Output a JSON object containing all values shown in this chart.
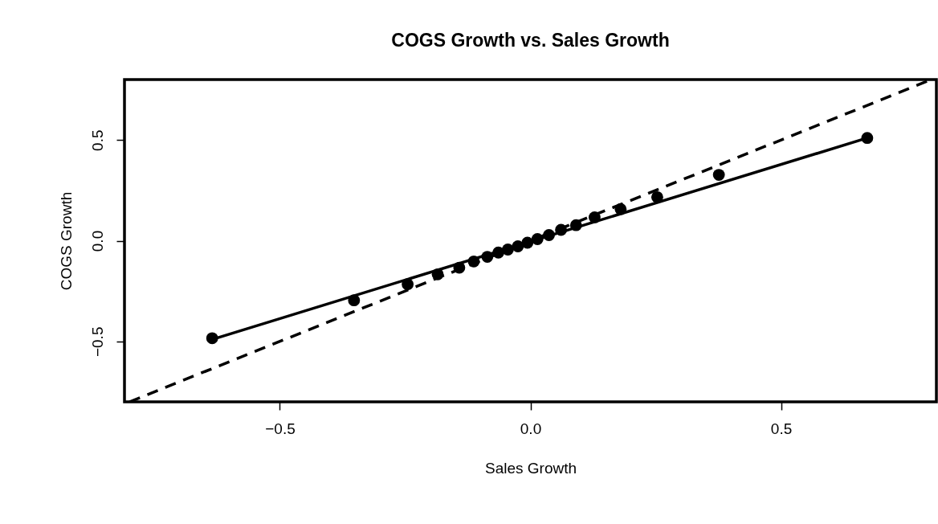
{
  "chart_data": {
    "type": "scatter",
    "title": "COGS Growth vs. Sales Growth",
    "xlabel": "Sales Growth",
    "ylabel": "COGS Growth",
    "grid": false,
    "xlim": [
      -0.81,
      0.81
    ],
    "ylim": [
      -0.8,
      0.8
    ],
    "xticks": [
      {
        "value": -0.5,
        "label": "−0.5"
      },
      {
        "value": 0,
        "label": "0.0"
      },
      {
        "value": 0.5,
        "label": "0.5"
      }
    ],
    "yticks": [
      {
        "value": -0.5,
        "label": "−0.5"
      },
      {
        "value": 0,
        "label": "0.0"
      },
      {
        "value": 0.5,
        "label": "0.5"
      }
    ],
    "series": [
      {
        "marker": "circle",
        "color": "#000000",
        "x": [
          -0.635,
          -0.352,
          -0.245,
          -0.185,
          -0.142,
          -0.113,
          -0.086,
          -0.064,
          -0.045,
          -0.025,
          -0.006,
          0.014,
          0.037,
          0.061,
          0.091,
          0.128,
          0.18,
          0.253,
          0.376,
          0.672
        ],
        "values": [
          -0.484,
          -0.296,
          -0.216,
          -0.167,
          -0.134,
          -0.103,
          -0.08,
          -0.059,
          -0.044,
          -0.028,
          -0.01,
          0.008,
          0.028,
          0.054,
          0.077,
          0.116,
          0.157,
          0.216,
          0.327,
          0.51
        ]
      },
      {
        "type": "line",
        "color": "#000000",
        "line_style": "solid",
        "marker": "none",
        "x": [
          -0.635,
          0.672
        ],
        "values": [
          -0.49,
          0.51
        ]
      },
      {
        "type": "line",
        "color": "#000000",
        "line_style": "dashed",
        "marker": "none",
        "x": [
          -0.8,
          0.8
        ],
        "values": [
          -0.8,
          0.8
        ]
      }
    ]
  }
}
